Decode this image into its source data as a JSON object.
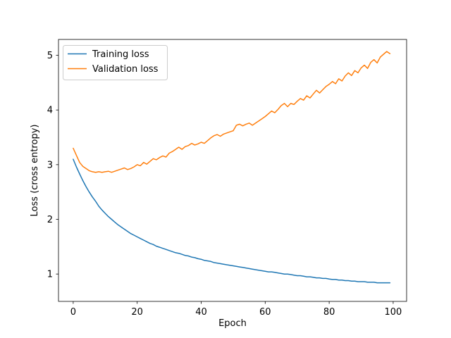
{
  "figure": {
    "background": "#ffffff",
    "text_color": "#000000",
    "spine_color": "#000000",
    "legend_frame_color": "#cccccc"
  },
  "chart_data": {
    "type": "line",
    "title": "",
    "xlabel": "Epoch",
    "ylabel": "Loss (cross entropy)",
    "grid": false,
    "legend_position": "upper left",
    "xlim": [
      -4.6,
      104.2
    ],
    "ylim": [
      0.5,
      5.29
    ],
    "xticks": [
      0,
      20,
      40,
      60,
      80,
      100
    ],
    "yticks": [
      1,
      2,
      3,
      4,
      5
    ],
    "x": [
      0,
      1,
      2,
      3,
      4,
      5,
      6,
      7,
      8,
      9,
      10,
      11,
      12,
      13,
      14,
      15,
      16,
      17,
      18,
      19,
      20,
      21,
      22,
      23,
      24,
      25,
      26,
      27,
      28,
      29,
      30,
      31,
      32,
      33,
      34,
      35,
      36,
      37,
      38,
      39,
      40,
      41,
      42,
      43,
      44,
      45,
      46,
      47,
      48,
      49,
      50,
      51,
      52,
      53,
      54,
      55,
      56,
      57,
      58,
      59,
      60,
      61,
      62,
      63,
      64,
      65,
      66,
      67,
      68,
      69,
      70,
      71,
      72,
      73,
      74,
      75,
      76,
      77,
      78,
      79,
      80,
      81,
      82,
      83,
      84,
      85,
      86,
      87,
      88,
      89,
      90,
      91,
      92,
      93,
      94,
      95,
      96,
      97,
      98,
      99
    ],
    "series": [
      {
        "name": "Training loss",
        "color": "#1f77b4",
        "values": [
          3.1,
          2.96,
          2.83,
          2.71,
          2.6,
          2.5,
          2.41,
          2.33,
          2.24,
          2.17,
          2.11,
          2.05,
          2.0,
          1.95,
          1.9,
          1.86,
          1.82,
          1.78,
          1.74,
          1.71,
          1.68,
          1.65,
          1.62,
          1.59,
          1.56,
          1.54,
          1.51,
          1.49,
          1.47,
          1.45,
          1.43,
          1.41,
          1.39,
          1.38,
          1.36,
          1.34,
          1.33,
          1.31,
          1.3,
          1.28,
          1.27,
          1.25,
          1.24,
          1.23,
          1.21,
          1.2,
          1.19,
          1.18,
          1.17,
          1.16,
          1.15,
          1.14,
          1.13,
          1.12,
          1.11,
          1.1,
          1.09,
          1.08,
          1.07,
          1.06,
          1.05,
          1.04,
          1.04,
          1.03,
          1.02,
          1.01,
          1.0,
          1.0,
          0.99,
          0.98,
          0.97,
          0.97,
          0.96,
          0.95,
          0.95,
          0.94,
          0.93,
          0.93,
          0.92,
          0.92,
          0.91,
          0.9,
          0.9,
          0.89,
          0.89,
          0.88,
          0.88,
          0.87,
          0.87,
          0.86,
          0.86,
          0.86,
          0.85,
          0.85,
          0.85,
          0.84,
          0.84,
          0.84,
          0.84,
          0.84
        ]
      },
      {
        "name": "Validation loss",
        "color": "#ff7f0e",
        "values": [
          3.3,
          3.17,
          3.04,
          2.97,
          2.93,
          2.89,
          2.87,
          2.86,
          2.87,
          2.86,
          2.87,
          2.88,
          2.86,
          2.88,
          2.9,
          2.92,
          2.94,
          2.91,
          2.93,
          2.96,
          3.0,
          2.98,
          3.04,
          3.01,
          3.06,
          3.11,
          3.09,
          3.13,
          3.16,
          3.14,
          3.21,
          3.24,
          3.28,
          3.32,
          3.28,
          3.33,
          3.35,
          3.39,
          3.36,
          3.38,
          3.41,
          3.39,
          3.44,
          3.49,
          3.53,
          3.55,
          3.52,
          3.56,
          3.58,
          3.6,
          3.62,
          3.72,
          3.74,
          3.71,
          3.74,
          3.76,
          3.72,
          3.76,
          3.8,
          3.84,
          3.88,
          3.93,
          3.98,
          3.95,
          4.01,
          4.08,
          4.12,
          4.06,
          4.12,
          4.1,
          4.16,
          4.21,
          4.18,
          4.26,
          4.22,
          4.29,
          4.36,
          4.31,
          4.37,
          4.43,
          4.47,
          4.52,
          4.48,
          4.57,
          4.53,
          4.62,
          4.68,
          4.63,
          4.72,
          4.68,
          4.77,
          4.82,
          4.76,
          4.87,
          4.92,
          4.86,
          4.97,
          5.02,
          5.07,
          5.03
        ]
      }
    ]
  }
}
